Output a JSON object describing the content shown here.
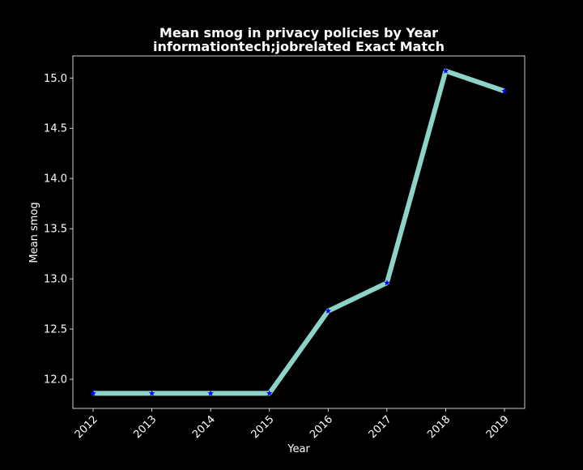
{
  "chart_data": {
    "type": "line",
    "title_line1": "Mean smog in privacy policies by Year",
    "title_line2": "informationtech;jobrelated Exact Match",
    "xlabel": "Year",
    "ylabel": "Mean smog",
    "x": [
      "2012",
      "2013",
      "2014",
      "2015",
      "2016",
      "2017",
      "2018",
      "2019"
    ],
    "series": [
      {
        "values": [
          11.86,
          11.86,
          11.86,
          11.86,
          12.68,
          12.96,
          15.07,
          14.87
        ],
        "line_color": "#8dd3c7",
        "marker_color": "#0000ff",
        "marker": "star"
      }
    ],
    "yticks": [
      "12.0",
      "12.5",
      "13.0",
      "13.5",
      "14.0",
      "14.5",
      "15.0"
    ],
    "ylim": [
      11.71,
      15.22
    ],
    "grid": false,
    "background": "#000000",
    "text_color": "#ffffff"
  }
}
